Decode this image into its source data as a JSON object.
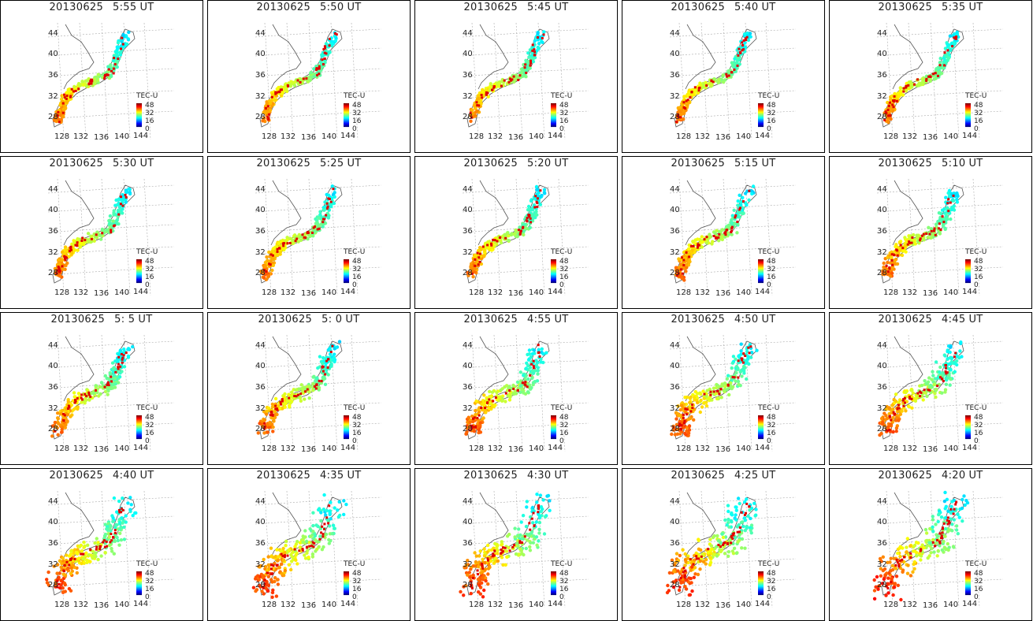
{
  "panels": [
    {
      "date": "20130625",
      "time": "5:55",
      "unit": "UT",
      "level": 1.0
    },
    {
      "date": "20130625",
      "time": "5:50",
      "unit": "UT",
      "level": 1.0
    },
    {
      "date": "20130625",
      "time": "5:45",
      "unit": "UT",
      "level": 1.0
    },
    {
      "date": "20130625",
      "time": "5:40",
      "unit": "UT",
      "level": 1.0
    },
    {
      "date": "20130625",
      "time": "5:35",
      "unit": "UT",
      "level": 1.0
    },
    {
      "date": "20130625",
      "time": "5:30",
      "unit": "UT",
      "level": 1.05
    },
    {
      "date": "20130625",
      "time": "5:25",
      "unit": "UT",
      "level": 1.05
    },
    {
      "date": "20130625",
      "time": "5:20",
      "unit": "UT",
      "level": 1.05
    },
    {
      "date": "20130625",
      "time": "5:15",
      "unit": "UT",
      "level": 1.1
    },
    {
      "date": "20130625",
      "time": "5:10",
      "unit": "UT",
      "level": 1.1
    },
    {
      "date": "20130625",
      "time": "5: 5",
      "unit": "UT",
      "level": 1.15
    },
    {
      "date": "20130625",
      "time": "5: 0",
      "unit": "UT",
      "level": 1.2
    },
    {
      "date": "20130625",
      "time": "4:55",
      "unit": "UT",
      "level": 1.25
    },
    {
      "date": "20130625",
      "time": "4:50",
      "unit": "UT",
      "level": 1.3
    },
    {
      "date": "20130625",
      "time": "4:45",
      "unit": "UT",
      "level": 1.35
    },
    {
      "date": "20130625",
      "time": "4:40",
      "unit": "UT",
      "level": 1.45
    },
    {
      "date": "20130625",
      "time": "4:35",
      "unit": "UT",
      "level": 1.5
    },
    {
      "date": "20130625",
      "time": "4:30",
      "unit": "UT",
      "level": 1.55
    },
    {
      "date": "20130625",
      "time": "4:25",
      "unit": "UT",
      "level": 1.6
    },
    {
      "date": "20130625",
      "time": "4:20",
      "unit": "UT",
      "level": 1.65
    }
  ],
  "colorbar": {
    "title": "TEC-U",
    "ticks": [
      "48",
      "32",
      "16",
      "0"
    ]
  },
  "lat_labels": [
    "44",
    "40",
    "36",
    "32",
    "28"
  ],
  "lon_labels": [
    "128",
    "132",
    "136",
    "140",
    "144"
  ],
  "colors": {
    "border": "#000000",
    "coast": "#555555",
    "grid": "#aaaaaa",
    "red_markers": "#e00000"
  }
}
